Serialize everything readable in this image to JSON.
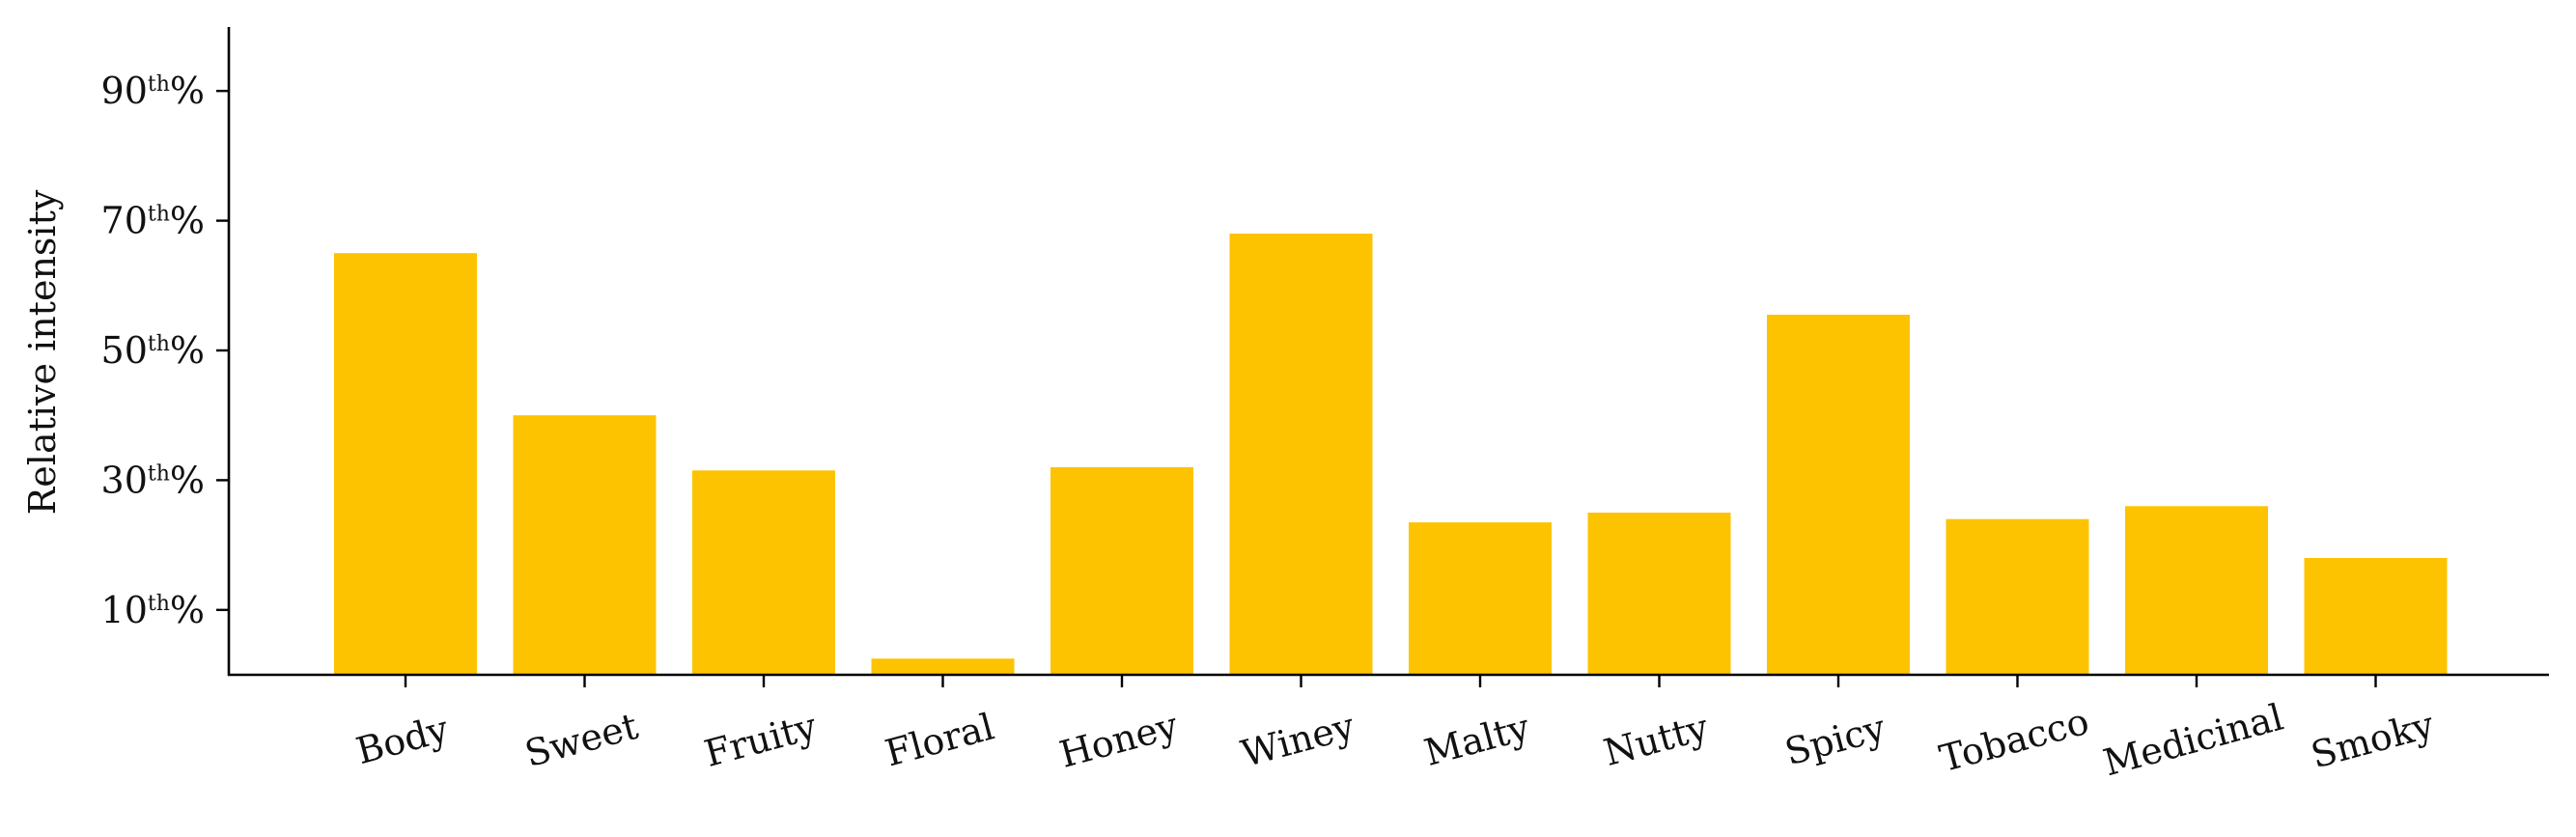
{
  "chart_data": {
    "type": "bar",
    "title": "",
    "xlabel": "",
    "ylabel": "Relative intensity",
    "categories": [
      "Body",
      "Sweet",
      "Fruity",
      "Floral",
      "Honey",
      "Winey",
      "Malty",
      "Nutty",
      "Spicy",
      "Tobacco",
      "Medicinal",
      "Smoky"
    ],
    "values": [
      65,
      40,
      31.5,
      2.5,
      32,
      68,
      23.5,
      25,
      55.5,
      24,
      26,
      18
    ],
    "ylim": [
      0,
      100
    ],
    "yticks": [
      {
        "value": 10,
        "base": "10",
        "sup": "th",
        "suffix": "%"
      },
      {
        "value": 30,
        "base": "30",
        "sup": "th",
        "suffix": "%"
      },
      {
        "value": 50,
        "base": "50",
        "sup": "th",
        "suffix": "%"
      },
      {
        "value": 70,
        "base": "70",
        "sup": "th",
        "suffix": "%"
      },
      {
        "value": 90,
        "base": "90",
        "sup": "th",
        "suffix": "%"
      }
    ],
    "grid": false,
    "bar_color": "#FDC300",
    "axis_color": "#000000"
  }
}
